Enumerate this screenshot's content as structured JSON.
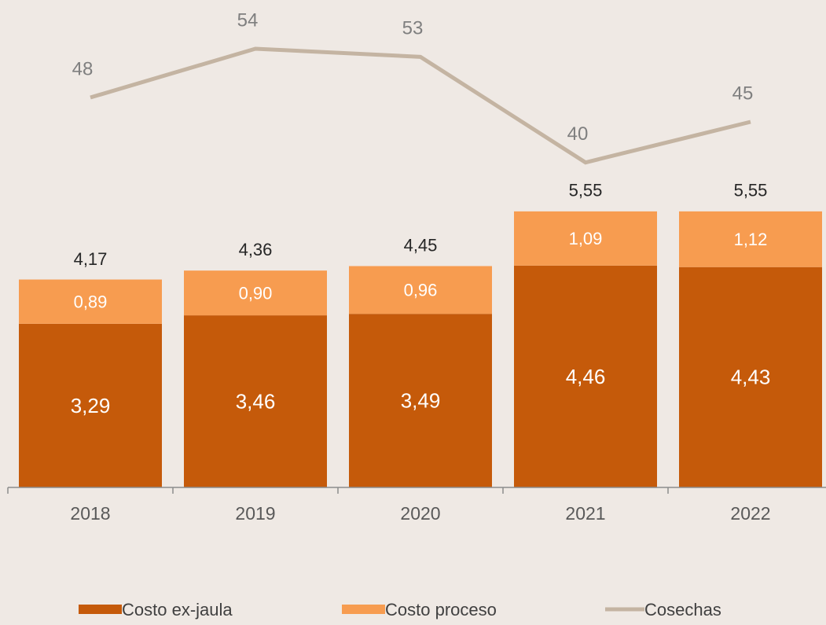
{
  "chart_data": {
    "type": "bar",
    "categories": [
      "2018",
      "2019",
      "2020",
      "2021",
      "2022"
    ],
    "series": [
      {
        "name": "Costo ex-jaula",
        "color": "#c55a0a",
        "values": [
          3.29,
          3.46,
          3.49,
          4.46,
          4.43
        ],
        "value_labels": [
          "3,29",
          "3,46",
          "3,49",
          "4,46",
          "4,43"
        ]
      },
      {
        "name": "Costo proceso",
        "color": "#f79c50",
        "values": [
          0.89,
          0.9,
          0.96,
          1.09,
          1.12
        ],
        "value_labels": [
          "0,89",
          "0,90",
          "0,96",
          "1,09",
          "1,12"
        ]
      },
      {
        "name": "Cosechas",
        "type": "line",
        "axis": "y2",
        "color": "#c4b4a2",
        "values": [
          48,
          54,
          53,
          40,
          45
        ]
      }
    ],
    "totals": [
      4.17,
      4.36,
      4.45,
      5.55,
      5.55
    ],
    "total_labels": [
      "4,17",
      "4,36",
      "4,45",
      "5,55",
      "5,55"
    ],
    "ylim": [
      0,
      9.8
    ],
    "y2lim": [
      0,
      60
    ],
    "stacked": true
  }
}
